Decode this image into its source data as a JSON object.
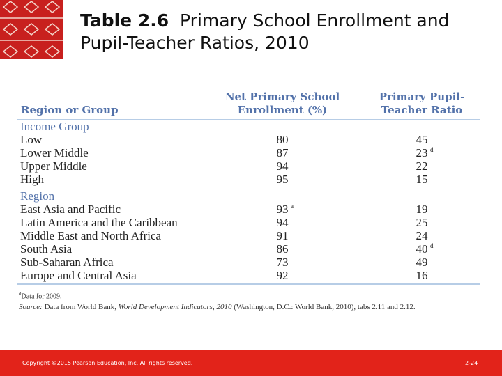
{
  "header": {
    "label": "Table 2.6",
    "title": "Primary School Enrollment and Pupil-Teacher Ratios, 2010"
  },
  "table": {
    "columns": [
      "Region or Group",
      "Net Primary School Enrollment (%)",
      "Primary Pupil-Teacher Ratio"
    ],
    "groups": [
      {
        "name": "Income Group",
        "rows": [
          {
            "label": "Low",
            "enrollment": {
              "value": 80
            },
            "ratio": {
              "value": 45
            }
          },
          {
            "label": "Lower Middle",
            "enrollment": {
              "value": 87
            },
            "ratio": {
              "value": 23,
              "note": "d"
            }
          },
          {
            "label": "Upper Middle",
            "enrollment": {
              "value": 94
            },
            "ratio": {
              "value": 22
            }
          },
          {
            "label": "High",
            "enrollment": {
              "value": 95
            },
            "ratio": {
              "value": 15
            }
          }
        ]
      },
      {
        "name": "Region",
        "rows": [
          {
            "label": "East Asia and Pacific",
            "enrollment": {
              "value": 93,
              "note": "a"
            },
            "ratio": {
              "value": 19
            }
          },
          {
            "label": "Latin America and the Caribbean",
            "enrollment": {
              "value": 94
            },
            "ratio": {
              "value": 25
            }
          },
          {
            "label": "Middle East and North Africa",
            "enrollment": {
              "value": 91
            },
            "ratio": {
              "value": 24
            }
          },
          {
            "label": "South Asia",
            "enrollment": {
              "value": 86
            },
            "ratio": {
              "value": 40,
              "note": "d"
            }
          },
          {
            "label": "Sub-Saharan Africa",
            "enrollment": {
              "value": 73
            },
            "ratio": {
              "value": 49
            }
          },
          {
            "label": "Europe and Central Asia",
            "enrollment": {
              "value": 92
            },
            "ratio": {
              "value": 16
            }
          }
        ]
      }
    ]
  },
  "footnote": {
    "mark": "d",
    "text": "Data for 2009."
  },
  "source": {
    "label": "Source:",
    "text1": "Data from World Bank,",
    "title": "World Development Indicators, 2010",
    "text2": "(Washington, D.C.: World Bank, 2010), tabs 2.11 and 2.12."
  },
  "footer": {
    "copyright": "Copyright ©2015 Pearson Education, Inc. All rights reserved.",
    "page": "2-24"
  }
}
